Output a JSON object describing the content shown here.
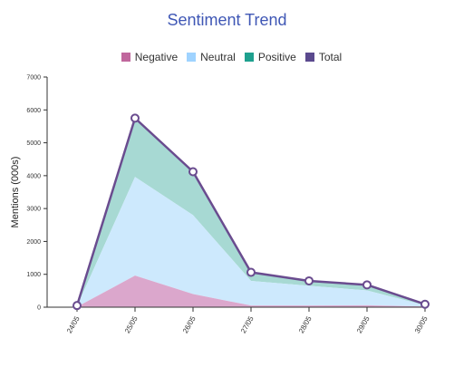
{
  "colors": {
    "title": "#3f57b5",
    "negative": "#c0679d",
    "neutral": "#bfe3ff",
    "positive": "#76c6b8",
    "total": "#6a4c8f",
    "axis": "#333333"
  },
  "chart_data": {
    "type": "area",
    "title": "Sentiment Trend",
    "xlabel": "",
    "ylabel": "Mentions (000s)",
    "ylim": [
      0,
      7000
    ],
    "yticks": [
      "0",
      "1000",
      "2000",
      "3000",
      "4000",
      "5000",
      "6000",
      "7000"
    ],
    "categories": [
      "24/05",
      "25/05",
      "26/05",
      "27/05",
      "28/05",
      "29/05",
      "30/05"
    ],
    "stacked": true,
    "legend_position": "top-center",
    "series": [
      {
        "name": "Negative",
        "values": [
          10,
          960,
          400,
          50,
          50,
          60,
          20
        ]
      },
      {
        "name": "Neutral",
        "values": [
          20,
          3000,
          2400,
          750,
          600,
          450,
          40
        ]
      },
      {
        "name": "Positive",
        "values": [
          20,
          1790,
          1320,
          260,
          150,
          170,
          30
        ]
      },
      {
        "name": "Total",
        "values": [
          50,
          5750,
          4120,
          1060,
          800,
          680,
          90
        ]
      }
    ]
  }
}
